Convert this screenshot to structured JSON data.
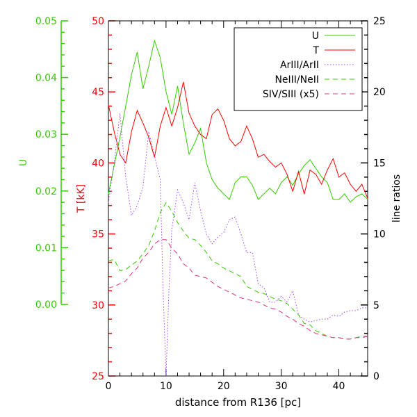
{
  "chart_data": {
    "type": "line",
    "xlabel": "distance from R136 [pc]",
    "xlim": [
      0,
      45
    ],
    "x_ticks": [
      "0",
      "10",
      "20",
      "30",
      "40"
    ],
    "axes": {
      "U": {
        "label": "U",
        "range": [
          0,
          0.05
        ],
        "ticks": [
          "0.00",
          "0.01",
          "0.02",
          "0.03",
          "0.04",
          "0.05"
        ],
        "color": "#33cc00"
      },
      "T": {
        "label": "T [kK]",
        "range": [
          25,
          50
        ],
        "ticks": [
          "25",
          "30",
          "35",
          "40",
          "45",
          "50"
        ],
        "color": "#ff0000"
      },
      "ratio": {
        "label": "line ratios",
        "range": [
          0,
          25
        ],
        "ticks": [
          "0",
          "5",
          "10",
          "15",
          "20",
          "25"
        ],
        "color": "#000000"
      }
    },
    "legend_position": "top-right",
    "series": [
      {
        "name": "U",
        "axis": "U",
        "color": "#33cc00",
        "dash": "",
        "x": [
          0,
          1,
          2,
          3,
          4,
          5,
          6,
          7,
          8,
          9,
          10,
          11,
          12,
          13,
          14,
          15,
          16,
          17,
          18,
          19,
          20,
          21,
          22,
          23,
          24,
          25,
          26,
          27,
          28,
          29,
          30,
          31,
          32,
          33,
          34,
          35,
          36,
          37,
          38,
          39,
          40,
          41,
          42,
          43,
          44,
          45
        ],
        "y": [
          0.0195,
          0.0245,
          0.0295,
          0.035,
          0.0405,
          0.0445,
          0.038,
          0.042,
          0.0465,
          0.0435,
          0.0375,
          0.0335,
          0.0385,
          0.032,
          0.0265,
          0.0285,
          0.031,
          0.025,
          0.022,
          0.0205,
          0.0195,
          0.0185,
          0.0215,
          0.0225,
          0.0225,
          0.021,
          0.0185,
          0.0195,
          0.0205,
          0.0195,
          0.0215,
          0.0225,
          0.021,
          0.023,
          0.0245,
          0.0255,
          0.024,
          0.0225,
          0.0215,
          0.0185,
          0.0185,
          0.0195,
          0.018,
          0.019,
          0.0195,
          0.0185
        ]
      },
      {
        "name": "T",
        "axis": "T",
        "color": "#ff0000",
        "dash": "",
        "x": [
          0,
          1,
          2,
          3,
          4,
          5,
          6,
          7,
          8,
          9,
          10,
          11,
          12,
          13,
          14,
          15,
          16,
          17,
          18,
          19,
          20,
          21,
          22,
          23,
          24,
          25,
          26,
          27,
          28,
          29,
          30,
          31,
          32,
          33,
          34,
          35,
          36,
          37,
          38,
          39,
          40,
          41,
          42,
          43,
          44,
          45
        ],
        "y": [
          44.1,
          42.2,
          40.6,
          40.0,
          42.2,
          43.7,
          42.8,
          41.8,
          40.4,
          42.6,
          43.9,
          42.6,
          43.9,
          45.7,
          43.5,
          42.6,
          42.0,
          41.7,
          43.4,
          43.8,
          43.0,
          41.7,
          41.2,
          41.5,
          42.6,
          41.7,
          40.4,
          40.6,
          40.1,
          39.7,
          40.0,
          39.2,
          38.0,
          39.4,
          37.8,
          39.5,
          39.2,
          38.5,
          39.5,
          40.3,
          39.0,
          39.3,
          38.5,
          38.0,
          38.5,
          37.5
        ]
      },
      {
        "name": "ArIII/ArII",
        "axis": "ratio",
        "color": "#a640ff",
        "dash": "1.5,2.5",
        "x": [
          0,
          1,
          2,
          3,
          4,
          5,
          6,
          7,
          8,
          9,
          9.5,
          10,
          10.5,
          11,
          12,
          13,
          14,
          15,
          16,
          17,
          18,
          19,
          20,
          21,
          22,
          23,
          24,
          25,
          26,
          27,
          28,
          29,
          30,
          31,
          32,
          33,
          34,
          35,
          36,
          37,
          38,
          39,
          40,
          41,
          42,
          43,
          44,
          45
        ],
        "y": [
          12.2,
          15.0,
          18.5,
          14.0,
          11.3,
          12.0,
          13.3,
          17.2,
          15.5,
          13.8,
          6.0,
          0.0,
          6.0,
          10.3,
          13.1,
          12.2,
          11.0,
          13.6,
          11.6,
          10.0,
          9.3,
          9.8,
          10.1,
          11.0,
          11.2,
          10.0,
          8.7,
          8.7,
          6.5,
          6.2,
          5.2,
          5.2,
          5.6,
          5.2,
          6.0,
          4.3,
          4.0,
          3.8,
          3.9,
          4.0,
          4.0,
          4.3,
          4.2,
          4.5,
          4.6,
          4.6,
          4.8,
          4.8
        ]
      },
      {
        "name": "NeIII/NeII",
        "axis": "ratio",
        "color": "#33cc00",
        "dash": "7,5",
        "x": [
          0,
          1,
          2,
          3,
          4,
          5,
          6,
          7,
          8,
          9,
          10,
          11,
          12,
          13,
          14,
          15,
          16,
          17,
          18,
          19,
          20,
          21,
          22,
          23,
          24,
          25,
          26,
          27,
          28,
          29,
          30,
          31,
          32,
          33,
          34,
          35,
          36,
          37,
          38,
          39,
          40,
          41,
          42,
          43,
          44,
          45
        ],
        "y": [
          8.1,
          8.2,
          7.4,
          7.5,
          7.8,
          8.1,
          8.6,
          9.2,
          10.2,
          11.5,
          12.2,
          11.6,
          10.8,
          10.2,
          9.7,
          9.6,
          9.2,
          8.7,
          8.1,
          7.9,
          7.6,
          7.4,
          7.2,
          7.0,
          6.3,
          6.1,
          5.9,
          5.8,
          5.6,
          5.4,
          5.3,
          5.1,
          4.7,
          4.3,
          3.7,
          3.6,
          3.2,
          3.0,
          2.8,
          2.7,
          2.7,
          2.6,
          2.6,
          2.7,
          2.8,
          2.8
        ]
      },
      {
        "name": "SIV/SIII (x5)",
        "axis": "ratio",
        "color": "#e0307f",
        "dash": "7,5",
        "x": [
          0,
          1,
          2,
          3,
          4,
          5,
          6,
          7,
          8,
          9,
          10,
          11,
          12,
          13,
          14,
          15,
          16,
          17,
          18,
          19,
          20,
          21,
          22,
          23,
          24,
          25,
          26,
          27,
          28,
          29,
          30,
          31,
          32,
          33,
          34,
          35,
          36,
          37,
          38,
          39,
          40,
          41,
          42,
          43,
          44,
          45
        ],
        "y": [
          6.2,
          6.3,
          6.5,
          6.7,
          7.2,
          7.6,
          8.3,
          8.7,
          9.3,
          9.6,
          9.6,
          9.0,
          8.6,
          7.9,
          7.6,
          7.1,
          7.0,
          6.9,
          6.6,
          6.3,
          6.1,
          5.9,
          5.7,
          5.5,
          5.4,
          5.3,
          5.2,
          5.0,
          4.8,
          4.7,
          4.5,
          4.2,
          4.0,
          3.7,
          3.5,
          3.2,
          3.0,
          2.9,
          2.8,
          2.7,
          2.7,
          2.6,
          2.6,
          2.7,
          2.7,
          2.8
        ]
      }
    ]
  }
}
